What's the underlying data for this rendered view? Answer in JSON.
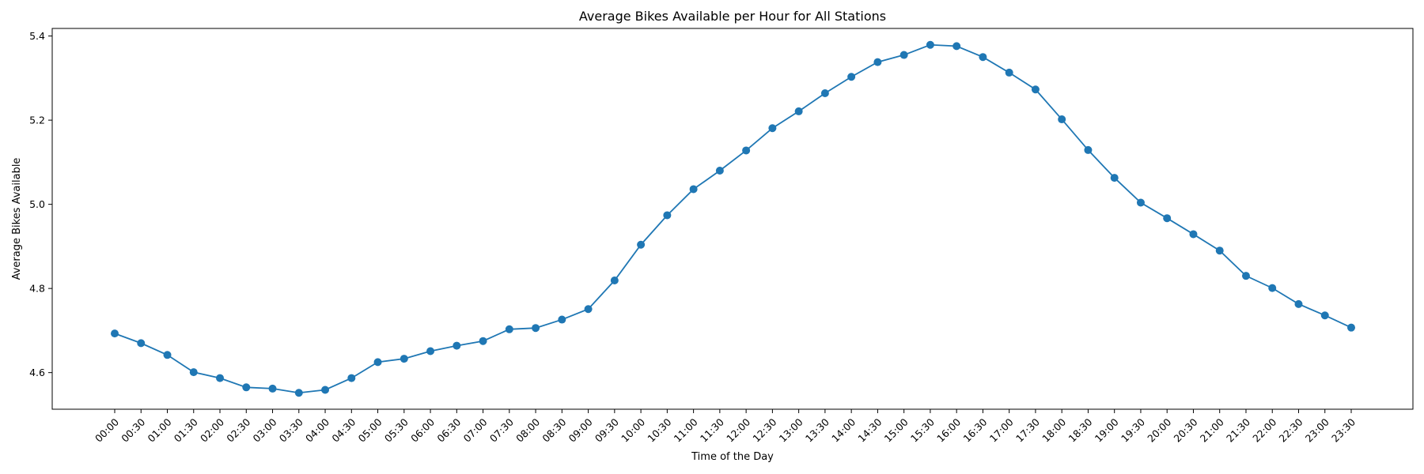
{
  "chart_data": {
    "type": "line",
    "title": "Average Bikes Available per Hour for All Stations",
    "xlabel": "Time of the Day",
    "ylabel": "Average Bikes Available",
    "categories": [
      "00:00",
      "00:30",
      "01:00",
      "01:30",
      "02:00",
      "02:30",
      "03:00",
      "03:30",
      "04:00",
      "04:30",
      "05:00",
      "05:30",
      "06:00",
      "06:30",
      "07:00",
      "07:30",
      "08:00",
      "08:30",
      "09:00",
      "09:30",
      "10:00",
      "10:30",
      "11:00",
      "11:30",
      "12:00",
      "12:30",
      "13:00",
      "13:30",
      "14:00",
      "14:30",
      "15:00",
      "15:30",
      "16:00",
      "16:30",
      "17:00",
      "17:30",
      "18:00",
      "18:30",
      "19:00",
      "19:30",
      "20:00",
      "20:30",
      "21:00",
      "21:30",
      "22:00",
      "22:30",
      "23:00",
      "23:30"
    ],
    "series": [
      {
        "values": [
          4.693,
          4.67,
          4.642,
          4.601,
          4.587,
          4.565,
          4.562,
          4.552,
          4.559,
          4.587,
          4.625,
          4.633,
          4.651,
          4.664,
          4.675,
          4.703,
          4.706,
          4.726,
          4.751,
          4.819,
          4.904,
          4.974,
          5.036,
          5.08,
          5.128,
          5.181,
          5.221,
          5.264,
          5.303,
          5.338,
          5.355,
          5.379,
          5.376,
          5.35,
          5.313,
          5.273,
          5.202,
          5.129,
          5.063,
          5.004,
          4.967,
          4.929,
          4.89,
          4.83,
          4.801,
          4.763,
          4.736,
          4.707
        ],
        "color": "#1f77b4"
      }
    ],
    "yticks": [
      "4.6",
      "4.8",
      "5.0",
      "5.2",
      "5.4"
    ],
    "ylim": [
      4.513,
      5.418
    ],
    "grid": false,
    "legend": "none",
    "marker": "circle"
  }
}
